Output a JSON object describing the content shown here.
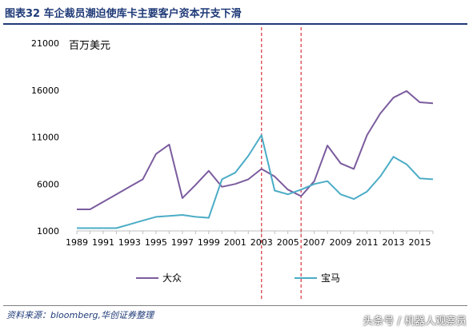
{
  "header": {
    "title": "图表32   车企裁员潮迫使库卡主要客户资本开支下滑"
  },
  "footer": {
    "source": "资料来源：bloomberg,华创证券整理",
    "watermark": "头条号 / 机器人观察员"
  },
  "chart_data": {
    "type": "line",
    "unit_label": "百万美元",
    "x": [
      1989,
      1990,
      1991,
      1992,
      1993,
      1994,
      1995,
      1996,
      1997,
      1998,
      1999,
      2000,
      2001,
      2002,
      2003,
      2004,
      2005,
      2006,
      2007,
      2008,
      2009,
      2010,
      2011,
      2012,
      2013,
      2014,
      2015,
      2016
    ],
    "x_tick_labels": [
      "1989",
      "1991",
      "1993",
      "1995",
      "1997",
      "1999",
      "2001",
      "2003",
      "2005",
      "2007",
      "2009",
      "2011",
      "2013",
      "2015"
    ],
    "y_tick_labels": [
      "1000",
      "6000",
      "11000",
      "16000",
      "21000"
    ],
    "ylim": [
      1000,
      21000
    ],
    "xlim": [
      1989,
      2016
    ],
    "series": [
      {
        "name": "大众",
        "color": "#7b5c9e",
        "values": [
          3300,
          3300,
          4100,
          4900,
          5700,
          6500,
          9200,
          10200,
          4500,
          5900,
          7400,
          5700,
          6000,
          6500,
          7600,
          6800,
          5400,
          4700,
          6300,
          10100,
          8200,
          7600,
          11200,
          13500,
          15200,
          15900,
          14700,
          14600
        ]
      },
      {
        "name": "宝马",
        "color": "#4bacc6",
        "values": [
          1300,
          1300,
          1300,
          1300,
          1700,
          2100,
          2500,
          2600,
          2700,
          2500,
          2400,
          6500,
          7200,
          9000,
          11200,
          5300,
          4900,
          5400,
          6000,
          6300,
          4900,
          4400,
          5200,
          6800,
          8900,
          8100,
          6600,
          6500
        ]
      }
    ],
    "reference_lines_x": [
      2003,
      2006
    ],
    "legend_placement": "bottom",
    "grid": false
  }
}
